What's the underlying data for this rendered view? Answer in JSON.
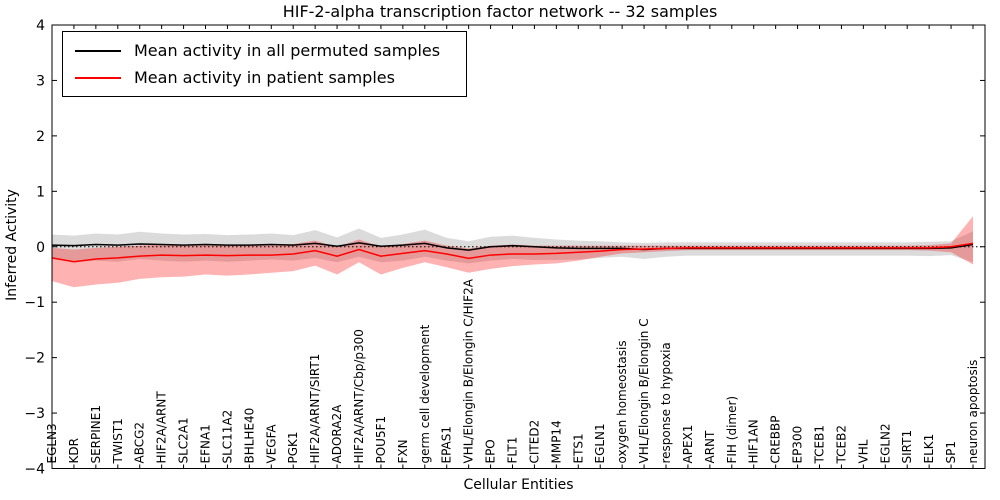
{
  "chart_data": {
    "type": "line",
    "title": "HIF-2-alpha transcription factor network -- 32 samples",
    "xlabel": "Cellular Entities",
    "ylabel": "Inferred Activity",
    "ylim": [
      -4,
      4
    ],
    "yticks": [
      -4,
      -3,
      -2,
      -1,
      0,
      1,
      2,
      3,
      4
    ],
    "grid": false,
    "legend_position": "upper left",
    "zero_line": {
      "style": "dotted",
      "y": 0
    },
    "categories": [
      "EGLN3",
      "KDR",
      "SERPINE1",
      "TWIST1",
      "ABCG2",
      "HIF2A/ARNT",
      "SLC2A1",
      "EFNA1",
      "SLC11A2",
      "BHLHE40",
      "VEGFA",
      "PGK1",
      "HIF2A/ARNT/SIRT1",
      "ADORA2A",
      "HIF2A/ARNT/Cbp/p300",
      "POU5F1",
      "FXN",
      "germ cell development",
      "EPAS1",
      "VHL/Elongin B/Elongin C/HIF2A",
      "EPO",
      "FLT1",
      "CITED2",
      "MMP14",
      "ETS1",
      "EGLN1",
      "oxygen homeostasis",
      "VHL/Elongin B/Elongin C",
      "response to hypoxia",
      "APEX1",
      "ARNT",
      "FIH (dimer)",
      "HIF1AN",
      "CREBBP",
      "EP300",
      "TCEB1",
      "TCEB2",
      "VHL",
      "EGLN2",
      "SIRT1",
      "ELK1",
      "SP1",
      "neuron apoptosis"
    ],
    "series": [
      {
        "name": "Mean activity in all permuted samples",
        "color": "#000000",
        "band_color": "#888888",
        "band_opacity": 0.3,
        "values": [
          0.03,
          0.02,
          0.04,
          0.03,
          0.05,
          0.04,
          0.03,
          0.04,
          0.03,
          0.03,
          0.04,
          0.03,
          0.06,
          0.01,
          0.07,
          0.01,
          0.03,
          0.06,
          -0.02,
          -0.06,
          0.0,
          0.02,
          0.0,
          -0.02,
          -0.03,
          -0.03,
          -0.03,
          -0.05,
          -0.03,
          -0.03,
          -0.03,
          -0.03,
          -0.03,
          -0.03,
          -0.03,
          -0.03,
          -0.03,
          -0.03,
          -0.03,
          -0.03,
          -0.03,
          -0.02,
          0.04
        ],
        "band_upper": [
          0.22,
          0.2,
          0.24,
          0.22,
          0.27,
          0.24,
          0.22,
          0.23,
          0.21,
          0.22,
          0.24,
          0.21,
          0.3,
          0.17,
          0.33,
          0.16,
          0.22,
          0.31,
          0.16,
          0.1,
          0.18,
          0.2,
          0.16,
          0.13,
          0.11,
          0.1,
          0.08,
          0.07,
          0.08,
          0.08,
          0.08,
          0.08,
          0.08,
          0.08,
          0.08,
          0.08,
          0.08,
          0.08,
          0.08,
          0.08,
          0.09,
          0.1,
          0.28
        ],
        "band_lower": [
          -0.22,
          -0.28,
          -0.25,
          -0.27,
          -0.22,
          -0.25,
          -0.27,
          -0.25,
          -0.27,
          -0.25,
          -0.23,
          -0.25,
          -0.2,
          -0.28,
          -0.18,
          -0.28,
          -0.25,
          -0.18,
          -0.25,
          -0.3,
          -0.25,
          -0.22,
          -0.24,
          -0.24,
          -0.23,
          -0.2,
          -0.18,
          -0.22,
          -0.18,
          -0.16,
          -0.16,
          -0.16,
          -0.16,
          -0.16,
          -0.16,
          -0.16,
          -0.16,
          -0.16,
          -0.16,
          -0.16,
          -0.17,
          -0.15,
          -0.28
        ]
      },
      {
        "name": "Mean activity in patient samples",
        "color": "#ff0000",
        "band_color": "#ff0000",
        "band_opacity": 0.3,
        "values": [
          -0.2,
          -0.27,
          -0.22,
          -0.2,
          -0.17,
          -0.15,
          -0.16,
          -0.15,
          -0.16,
          -0.15,
          -0.15,
          -0.13,
          -0.07,
          -0.17,
          -0.05,
          -0.17,
          -0.12,
          -0.07,
          -0.13,
          -0.21,
          -0.15,
          -0.13,
          -0.13,
          -0.12,
          -0.1,
          -0.08,
          -0.05,
          -0.04,
          -0.03,
          -0.02,
          -0.02,
          -0.02,
          -0.02,
          -0.02,
          -0.02,
          -0.02,
          -0.02,
          -0.02,
          -0.02,
          -0.02,
          -0.02,
          0.0,
          0.06
        ],
        "band_upper": [
          -0.02,
          -0.05,
          -0.02,
          0.0,
          0.02,
          0.04,
          0.02,
          0.03,
          0.02,
          0.03,
          0.04,
          0.05,
          0.11,
          0.0,
          0.13,
          0.0,
          0.05,
          0.11,
          0.02,
          -0.03,
          0.02,
          0.04,
          0.02,
          0.02,
          0.02,
          0.02,
          0.02,
          0.02,
          0.02,
          0.02,
          0.02,
          0.02,
          0.02,
          0.02,
          0.02,
          0.02,
          0.02,
          0.02,
          0.02,
          0.02,
          0.03,
          0.06,
          0.55
        ],
        "band_lower": [
          -0.62,
          -0.73,
          -0.68,
          -0.65,
          -0.58,
          -0.55,
          -0.54,
          -0.5,
          -0.52,
          -0.5,
          -0.47,
          -0.44,
          -0.34,
          -0.5,
          -0.28,
          -0.5,
          -0.38,
          -0.28,
          -0.37,
          -0.47,
          -0.4,
          -0.35,
          -0.32,
          -0.3,
          -0.25,
          -0.18,
          -0.12,
          -0.1,
          -0.08,
          -0.06,
          -0.06,
          -0.06,
          -0.06,
          -0.06,
          -0.06,
          -0.06,
          -0.06,
          -0.06,
          -0.06,
          -0.06,
          -0.07,
          -0.1,
          -0.32
        ]
      }
    ]
  }
}
